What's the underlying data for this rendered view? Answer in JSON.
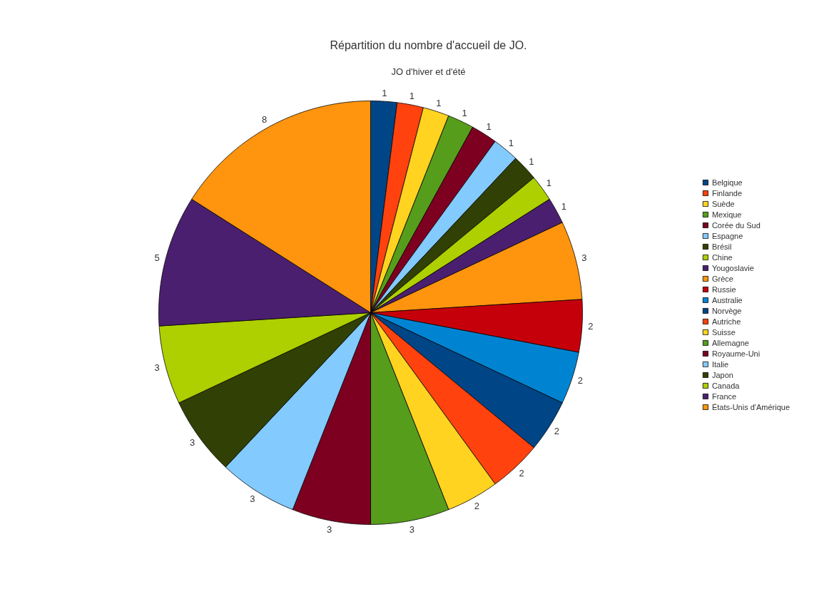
{
  "chart_data": {
    "type": "pie",
    "title": "Répartition du nombre d'accueil de JO.",
    "subtitle": "JO d'hiver et d'été",
    "categories": [
      "Belgique",
      "Finlande",
      "Suède",
      "Mexique",
      "Corée du Sud",
      "Espagne",
      "Brésil",
      "Chine",
      "Yougoslavie",
      "Grèce",
      "Russie",
      "Australie",
      "Norvège",
      "Autriche",
      "Suisse",
      "Allemagne",
      "Royaume-Uni",
      "Italie",
      "Japon",
      "Canada",
      "France",
      "États-Unis d'Amérique"
    ],
    "values": [
      1,
      1,
      1,
      1,
      1,
      1,
      1,
      1,
      1,
      3,
      2,
      2,
      2,
      2,
      2,
      3,
      3,
      3,
      3,
      3,
      5,
      8
    ],
    "colors": [
      "#004586",
      "#ff420e",
      "#ffd320",
      "#579d1c",
      "#7e0021",
      "#83caff",
      "#314004",
      "#aecf00",
      "#4b1f6f",
      "#ff950e",
      "#c5000b",
      "#0084d1",
      "#004586",
      "#ff420e",
      "#ffd320",
      "#579d1c",
      "#7e0021",
      "#83caff",
      "#314004",
      "#aecf00",
      "#4b1f6f",
      "#ff950e"
    ],
    "data_labels": true,
    "legend": "right"
  }
}
